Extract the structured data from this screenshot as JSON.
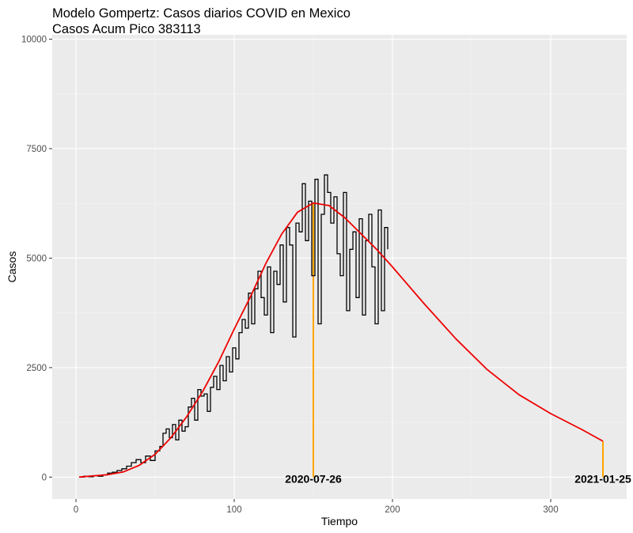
{
  "chart_data": {
    "type": "line",
    "title": "Modelo Gompertz: Casos diarios COVID en Mexico",
    "subtitle": "Casos Acum Pico 383113",
    "xlabel": "Tiempo",
    "ylabel": "Casos",
    "xlim": [
      -15,
      348
    ],
    "ylim": [
      -500,
      10100
    ],
    "x_ticks": [
      0,
      100,
      200,
      300
    ],
    "y_ticks": [
      0,
      2500,
      5000,
      7500,
      10000
    ],
    "y_tick_labels": [
      "0",
      "2500",
      "5000",
      "7500",
      "10000"
    ],
    "grid": true,
    "colors": {
      "panel": "#ebebeb",
      "grid_major": "#ffffff",
      "grid_minor": "#f4f4f4",
      "observed": "#000000",
      "model": "#ee0000",
      "peak_marker": "#ffa500"
    },
    "series": [
      {
        "style": "step",
        "color": "#000000",
        "x": [
          2,
          5,
          8,
          11,
          14,
          17,
          20,
          23,
          26,
          29,
          32,
          35,
          38,
          41,
          44,
          47,
          50,
          53,
          55,
          57,
          59,
          61,
          63,
          65,
          67,
          69,
          71,
          73,
          75,
          77,
          79,
          81,
          83,
          85,
          87,
          89,
          91,
          93,
          95,
          97,
          99,
          101,
          103,
          105,
          107,
          109,
          111,
          113,
          115,
          117,
          119,
          121,
          123,
          125,
          127,
          129,
          131,
          133,
          135,
          137,
          139,
          141,
          143,
          145,
          147,
          149,
          151,
          153,
          155,
          157,
          159,
          161,
          163,
          165,
          167,
          169,
          171,
          173,
          175,
          177,
          179,
          181,
          183,
          185,
          187,
          189,
          191,
          193,
          195,
          197
        ],
        "y": [
          0,
          20,
          10,
          30,
          20,
          50,
          90,
          110,
          150,
          190,
          250,
          330,
          400,
          330,
          480,
          380,
          600,
          700,
          1000,
          1100,
          900,
          1200,
          850,
          1300,
          1050,
          1150,
          1600,
          1800,
          1300,
          2000,
          1850,
          1900,
          1500,
          2050,
          2300,
          2000,
          2550,
          2200,
          2750,
          2400,
          2950,
          2700,
          3300,
          3600,
          3400,
          4200,
          3500,
          4300,
          4700,
          4100,
          3700,
          4800,
          3300,
          4700,
          4400,
          5300,
          4000,
          5700,
          5300,
          3200,
          5800,
          5600,
          6700,
          5400,
          6300,
          4600,
          6800,
          3500,
          6000,
          6900,
          6500,
          5800,
          6400,
          5100,
          4600,
          6500,
          3800,
          5200,
          5600,
          4100,
          5900,
          3700,
          5400,
          6000,
          4800,
          3500,
          6100,
          3800,
          5700,
          5200
        ]
      },
      {
        "style": "curve",
        "color": "#ee0000",
        "x": [
          2,
          10,
          20,
          30,
          40,
          50,
          60,
          70,
          80,
          90,
          100,
          110,
          120,
          130,
          140,
          150,
          160,
          170,
          180,
          190,
          200,
          220,
          240,
          260,
          280,
          300,
          320,
          333
        ],
        "y": [
          0,
          25,
          55,
          120,
          270,
          520,
          900,
          1380,
          1950,
          2620,
          3380,
          4100,
          4880,
          5550,
          6050,
          6260,
          6200,
          5920,
          5560,
          5200,
          4800,
          3960,
          3160,
          2450,
          1880,
          1450,
          1080,
          820
        ]
      }
    ],
    "annotations": [
      {
        "label": "2020-07-26",
        "x": 150,
        "y_top": 6260
      },
      {
        "label": "2021-01-25",
        "x": 333,
        "y_top": 820
      }
    ]
  }
}
